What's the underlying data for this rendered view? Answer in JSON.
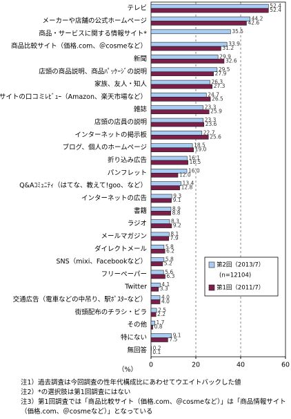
{
  "chart_data": {
    "type": "bar",
    "orientation": "horizontal",
    "categories": [
      "テレビ",
      "メーカーや店舗の公式ホームページ",
      "商品・サービスに関する情報サイト*",
      "商品比較サイト（価格.com、＠cosmeなど）",
      "新聞",
      "店頭の商品説明、商品ﾊﾟｯｹｰｼﾞの説明",
      "家族、友人・知人",
      "ECサイトの口コミﾚﾋﾞｭｰ（Amazon、楽天市場など）",
      "雑誌",
      "店頭の店員の説明",
      "インターネットの掲示板",
      "ブログ、個人のホームページ",
      "折り込み広告",
      "パンフレット",
      "Q&Aｺﾐｭﾆﾃｨ（はてな、教えて!goo、など）",
      "インターネットの広告",
      "書籍",
      "ラジオ",
      "メールマガジン",
      "ダイレクトメール",
      "SNS（mixi、Facebookなど）",
      "フリーペーパー",
      "Twitter",
      "交通広告（電車などの中吊り、駅ﾎﾟｽﾀｰなど）",
      "街頭配布のチラシ・ビラ",
      "その他",
      "特にない",
      "無回答"
    ],
    "series": [
      {
        "name": "第2回（2013/7）",
        "color": "#a9cdf2",
        "values": [
          52.4,
          44.2,
          35.5,
          33.9,
          29.9,
          29.5,
          26.3,
          24.7,
          23.3,
          23.3,
          22.7,
          18.5,
          16.1,
          16.0,
          13.4,
          9.3,
          8.9,
          8.3,
          8.1,
          5.8,
          5.8,
          5.6,
          4.1,
          4.0,
          2.5,
          1.7,
          9.1,
          0.2
        ],
        "value_labels": [
          "52.4",
          "44.2",
          "35.5",
          "33.9",
          "29.9",
          "29.5",
          "26.3",
          "24.7",
          "23.3",
          "23.3",
          "22.7",
          "18.5",
          "16.1",
          "16.0",
          "13.4",
          "9.3",
          "8.9",
          "8.3",
          "8.1",
          "5.8",
          "5.8",
          "5.6",
          "4.1",
          "4.0",
          "2.5",
          "1.7",
          "9.1",
          "0.2"
        ]
      },
      {
        "name": "第1回（2011/7）",
        "color": "#7b1f4a",
        "values": [
          52.4,
          42.6,
          null,
          31.2,
          32.6,
          27.9,
          27.3,
          26.5,
          25.9,
          23.6,
          25.6,
          19.0,
          16.5,
          12.0,
          12.8,
          9.1,
          8.8,
          9.2,
          7.9,
          6.2,
          5.2,
          6.3,
          3.3,
          4.0,
          2.2,
          0.8,
          7.5,
          0.1
        ],
        "value_labels": [
          "52.4",
          "42.6",
          null,
          "31.2",
          "32.6",
          "27.9",
          "27.3",
          "26.5",
          "25.9",
          "23.6",
          "25.6",
          "19.0",
          "16.5",
          "12.0",
          "12.8",
          "9.1",
          "8.8",
          "9.2",
          "7.9",
          "6.2",
          "5.2",
          "6.3",
          "3.3",
          "4.0",
          "2.2",
          "0.8",
          "7.5",
          "0.1"
        ]
      }
    ],
    "legend_note": "(n=12104)",
    "xlim": [
      0,
      60
    ],
    "xticks": [
      0,
      20,
      40,
      60
    ],
    "grid": true,
    "unit_label": "（%）",
    "notes": [
      "注1）過去調査は今回調査の性年代構成比にあわせてウエイトバックした値",
      "注2）*の選択肢は第1回調査にはない",
      "注3）第1回調査では「商品比較サイト（価格.com、＠cosmeなど）」は「商品情報サイト（価格.com、＠cosmeなど）」となっている"
    ]
  }
}
